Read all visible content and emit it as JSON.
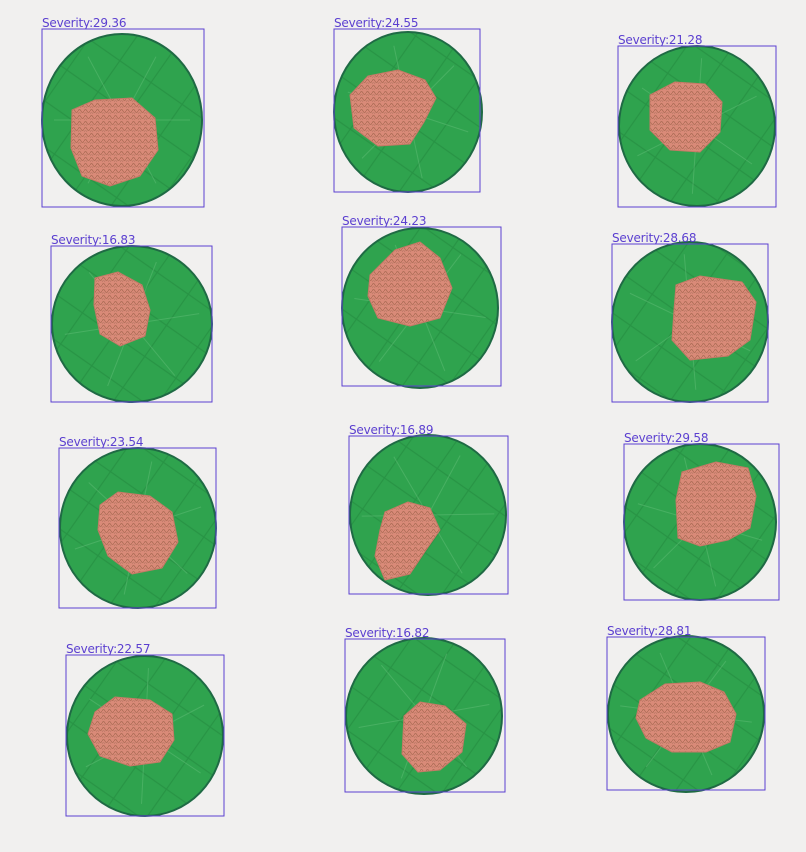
{
  "detections": [
    {
      "label": "Severity:29.36"
    },
    {
      "label": "Severity:24.55"
    },
    {
      "label": "Severity:21.28"
    },
    {
      "label": "Severity:16.83"
    },
    {
      "label": "Severity:24.23"
    },
    {
      "label": "Severity:28.68"
    },
    {
      "label": "Severity:23.54"
    },
    {
      "label": "Severity:16.89"
    },
    {
      "label": "Severity:29.58"
    },
    {
      "label": "Severity:22.57"
    },
    {
      "label": "Severity:16.82"
    },
    {
      "label": "Severity:28.81"
    }
  ],
  "colors": {
    "background": "#f1f0ef",
    "leaf": "#2fa34e",
    "leaf_outline": "#1f6a44",
    "lesion": "#d98a78",
    "box": "#5b3fd0"
  }
}
